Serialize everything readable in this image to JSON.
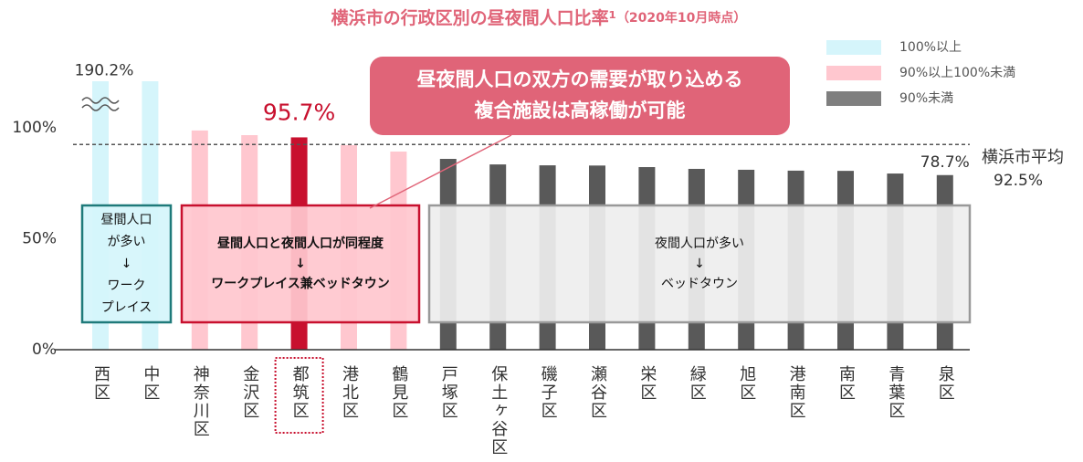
{
  "chart_data": {
    "type": "bar",
    "title": "横浜市の行政区別の昼夜間人口比率¹",
    "subtitle": "（2020年10月時点）",
    "categories": [
      "西区",
      "中区",
      "神奈川区",
      "金沢区",
      "都筑区",
      "港北区",
      "鶴見区",
      "戸塚区",
      "保土ヶ谷区",
      "磯子区",
      "瀬谷区",
      "栄区",
      "緑区",
      "旭区",
      "港南区",
      "南区",
      "青葉区",
      "泉区"
    ],
    "values": [
      190.2,
      130,
      98.8,
      96.7,
      95.7,
      92.2,
      89.3,
      86,
      83.5,
      83.1,
      83,
      82.3,
      81.5,
      81.1,
      80.7,
      80.6,
      79.4,
      78.7
    ],
    "value_labels": [
      "190.2%",
      null,
      null,
      null,
      "95.7%",
      null,
      null,
      null,
      null,
      null,
      null,
      null,
      null,
      null,
      null,
      null,
      null,
      "78.7%"
    ],
    "colors": [
      "#d5f5fb",
      "#d5f5fb",
      "#ffc7cf",
      "#ffc7cf",
      "#c8102e",
      "#ffc7cf",
      "#ffc7cf",
      "#595959",
      "#595959",
      "#595959",
      "#595959",
      "#595959",
      "#595959",
      "#595959",
      "#595959",
      "#595959",
      "#595959",
      "#595959"
    ],
    "ylim": [
      0,
      120
    ],
    "yticks": [
      {
        "value": 0,
        "label": "0%"
      },
      {
        "value": 50,
        "label": "50%"
      },
      {
        "value": 100,
        "label": "100%"
      }
    ],
    "legend": [
      {
        "name": "100%以上",
        "color": "#d5f5fb"
      },
      {
        "name": "90%以上100%未満",
        "color": "#ffc7cf"
      },
      {
        "name": "90%未満",
        "color": "#7f7f7f"
      }
    ],
    "average": {
      "label": "横浜市平均",
      "value": 92.5,
      "value_label": "92.5%"
    },
    "callout": [
      "昼夜間人口の双方の需要が取り込める",
      "複合施設は高稼働が可能"
    ],
    "boxes": [
      {
        "lines": [
          "昼間人口",
          "が多い",
          "↓",
          "ワーク",
          "プレイス"
        ]
      },
      {
        "lines": [
          "昼間人口と夜間人口が同程度",
          "↓",
          "ワークプレイス兼ベッドタウン"
        ]
      },
      {
        "lines": [
          "夜間人口が多い",
          "↓",
          "ベッドタウン"
        ]
      }
    ]
  }
}
